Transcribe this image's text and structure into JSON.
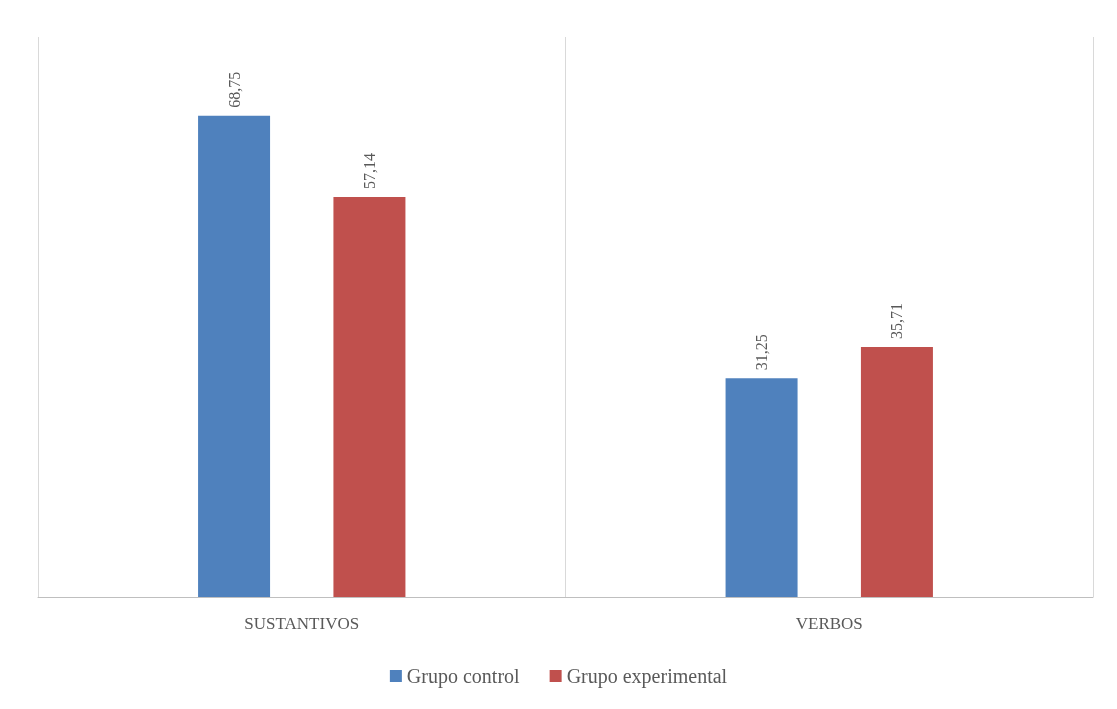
{
  "chart_data": {
    "type": "bar",
    "categories": [
      "SUSTANTIVOS",
      "VERBOS"
    ],
    "series": [
      {
        "name": "Grupo control",
        "color": "#4f81bd",
        "values": [
          68.75,
          31.25
        ],
        "value_labels": [
          "68,75",
          "31,25"
        ]
      },
      {
        "name": "Grupo experimental",
        "color": "#c0504d",
        "values": [
          57.14,
          35.71
        ],
        "value_labels": [
          "57,14",
          "35,71"
        ]
      }
    ],
    "ylim": [
      0,
      80
    ],
    "grid": "x",
    "legend": "bottom"
  }
}
